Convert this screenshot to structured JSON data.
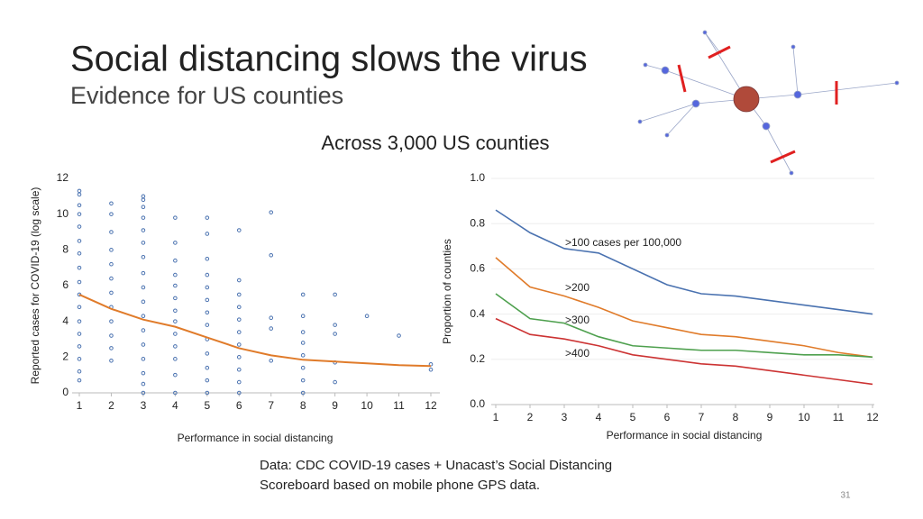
{
  "header": {
    "title": "Social distancing slows the virus",
    "subtitle": "Evidence for US counties"
  },
  "caption": "Across 3,000 US counties",
  "chart_data": [
    {
      "type": "scatter",
      "y_label": "Reported cases for COVID-19 (log scale)",
      "x_label": "Performance in social distancing",
      "xlim": [
        1,
        12
      ],
      "xticks": [
        1,
        2,
        3,
        4,
        5,
        6,
        7,
        8,
        9,
        10,
        11,
        12
      ],
      "ylim": [
        0,
        12
      ],
      "yticks": [
        0,
        2,
        4,
        6,
        8,
        10,
        12
      ],
      "points": {
        "color": "#4a72b0",
        "x": [
          1,
          1,
          1,
          1,
          1,
          1,
          1,
          1,
          1,
          1,
          1,
          1,
          1,
          1,
          1,
          1,
          1,
          2,
          2,
          2,
          2,
          2,
          2,
          2,
          2,
          2,
          2,
          2,
          2,
          3,
          3,
          3,
          3,
          3,
          3,
          3,
          3,
          3,
          3,
          3,
          3,
          3,
          3,
          3,
          3,
          3,
          4,
          4,
          4,
          4,
          4,
          4,
          4,
          4,
          4,
          4,
          4,
          4,
          4,
          5,
          5,
          5,
          5,
          5,
          5,
          5,
          5,
          5,
          5,
          5,
          5,
          5,
          6,
          6,
          6,
          6,
          6,
          6,
          6,
          6,
          6,
          6,
          6,
          7,
          7,
          7,
          7,
          7,
          8,
          8,
          8,
          8,
          8,
          8,
          8,
          8,
          9,
          9,
          9,
          9,
          9,
          10,
          11,
          12,
          12
        ],
        "y": [
          0.7,
          1.2,
          1.9,
          2.6,
          3.3,
          4,
          4.8,
          5.5,
          6.2,
          7,
          7.8,
          8.5,
          9.3,
          10,
          10.5,
          11.1,
          11.3,
          1.8,
          2.5,
          3.2,
          4,
          4.8,
          5.6,
          6.4,
          7.2,
          8,
          9,
          10,
          10.6,
          0,
          0.5,
          1.1,
          1.9,
          2.7,
          3.5,
          4.3,
          5.1,
          5.9,
          6.7,
          7.6,
          8.4,
          9.1,
          9.8,
          10.4,
          10.8,
          11,
          0,
          1,
          1.9,
          2.6,
          3.3,
          4,
          4.6,
          5.3,
          6,
          6.6,
          7.4,
          8.4,
          9.8,
          0,
          0.7,
          1.4,
          2.2,
          3,
          3.8,
          4.5,
          5.2,
          5.9,
          6.6,
          7.5,
          8.9,
          9.8,
          0,
          0.6,
          1.3,
          2,
          2.7,
          3.4,
          4.1,
          4.8,
          5.5,
          6.3,
          9.1,
          1.8,
          3.6,
          4.2,
          7.7,
          10.1,
          0,
          0.7,
          1.4,
          2.1,
          2.8,
          3.4,
          4.3,
          5.5,
          0.6,
          1.7,
          3.3,
          3.8,
          5.5,
          4.3,
          3.2,
          1.3,
          1.6
        ]
      },
      "trend": {
        "color": "#e07b2a",
        "x": [
          1,
          2,
          3,
          4,
          5,
          6,
          7,
          8,
          9,
          10,
          11,
          12
        ],
        "y": [
          5.5,
          4.7,
          4.1,
          3.7,
          3.1,
          2.5,
          2.1,
          1.85,
          1.75,
          1.65,
          1.55,
          1.5
        ]
      }
    },
    {
      "type": "line",
      "y_label": "Proportion of counties",
      "x_label": "Performance in social distancing",
      "x": [
        1,
        2,
        3,
        4,
        5,
        6,
        7,
        8,
        9,
        10,
        11,
        12
      ],
      "xlim": [
        1,
        12
      ],
      "xticks": [
        1,
        2,
        3,
        4,
        5,
        6,
        7,
        8,
        9,
        10,
        11,
        12
      ],
      "ylim": [
        0,
        1
      ],
      "yticks": [
        {
          "value": 0,
          "label": "0.0"
        },
        {
          "value": 0.2,
          "label": "0.2"
        },
        {
          "value": 0.4,
          "label": "0.4"
        },
        {
          "value": 0.6,
          "label": "0.6"
        },
        {
          "value": 0.8,
          "label": "0.8"
        },
        {
          "value": 1,
          "label": "1.0"
        }
      ],
      "grid": true,
      "series": [
        {
          "name": ">100 cases per 100,000",
          "color": "#4a72b0",
          "values": [
            0.86,
            0.76,
            0.69,
            0.67,
            0.6,
            0.53,
            0.49,
            0.48,
            0.46,
            0.44,
            0.42,
            0.4
          ]
        },
        {
          "name": ">200",
          "color": "#e07b2a",
          "values": [
            0.65,
            0.52,
            0.48,
            0.43,
            0.37,
            0.34,
            0.31,
            0.3,
            0.28,
            0.26,
            0.23,
            0.21
          ]
        },
        {
          "name": ">300",
          "color": "#4ea04e",
          "values": [
            0.49,
            0.38,
            0.36,
            0.3,
            0.26,
            0.25,
            0.24,
            0.24,
            0.23,
            0.22,
            0.22,
            0.21
          ]
        },
        {
          "name": ">400",
          "color": "#cc3333",
          "values": [
            0.38,
            0.31,
            0.29,
            0.26,
            0.22,
            0.2,
            0.18,
            0.17,
            0.15,
            0.13,
            0.11,
            0.09
          ]
        }
      ]
    }
  ],
  "footer": {
    "lines": [
      "Data: CDC COVID-19 cases + Unacast’s Social Distancing",
      "Scoreboard based on mobile phone GPS data."
    ],
    "page": 31
  }
}
